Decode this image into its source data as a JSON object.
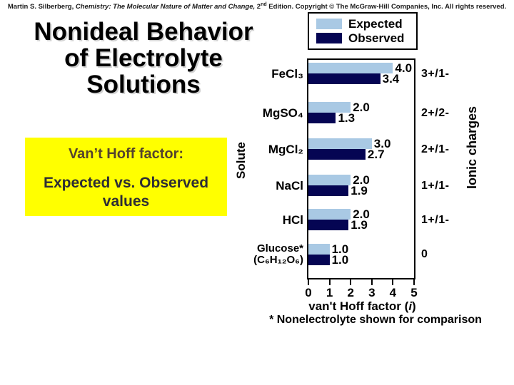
{
  "copyright": {
    "seg1": "Martin S. Silberberg, ",
    "seg_italic": "Chemistry: The Molecular Nature of Matter and Change, ",
    "seg2": "2",
    "seg_sup": "nd",
    "seg3": " Edition. Copyright © The McGraw-Hill Companies, Inc. All rights reserved."
  },
  "title": {
    "line1": "Nonideal Behavior",
    "line2": "of Electrolyte",
    "line3": "Solutions"
  },
  "callout": {
    "bg_color": "#ffff00",
    "line1": "Van’t Hoff factor:",
    "line2": "Expected vs. Observed values"
  },
  "chart_data": {
    "type": "bar",
    "orientation": "horizontal",
    "ylabel": "Solute",
    "ylabel_right": "Ionic charges",
    "xlabel_pre": "van't Hoff factor (",
    "xlabel_var": "i",
    "xlabel_post": ")",
    "xlim": [
      0,
      5
    ],
    "xticks": [
      0,
      1,
      2,
      3,
      4,
      5
    ],
    "grid": false,
    "legend_position": "top-right",
    "footnote": "* Nonelectrolyte shown for comparison",
    "series": [
      {
        "name": "Expected",
        "color": "#a9c9e4",
        "values": [
          4.0,
          2.0,
          3.0,
          2.0,
          2.0,
          1.0
        ]
      },
      {
        "name": "Observed",
        "color": "#050553",
        "values": [
          3.4,
          1.3,
          2.7,
          1.9,
          1.9,
          1.0
        ]
      }
    ],
    "rows": [
      {
        "solute": "FeCl₃",
        "expected_label": "4.0",
        "observed_label": "3.4",
        "charge": "3+/1-"
      },
      {
        "solute": "MgSO₄",
        "expected_label": "2.0",
        "observed_label": "1.3",
        "charge": "2+/2-"
      },
      {
        "solute": "MgCl₂",
        "expected_label": "3.0",
        "observed_label": "2.7",
        "charge": "2+/1-"
      },
      {
        "solute": "NaCl",
        "expected_label": "2.0",
        "observed_label": "1.9",
        "charge": "1+/1-"
      },
      {
        "solute": "HCl",
        "expected_label": "2.0",
        "observed_label": "1.9",
        "charge": "1+/1-"
      },
      {
        "solute": "Glucose*",
        "solute2": "(C₆H₁₂O₆)",
        "expected_label": "1.0",
        "observed_label": "1.0",
        "charge": "0"
      }
    ]
  }
}
